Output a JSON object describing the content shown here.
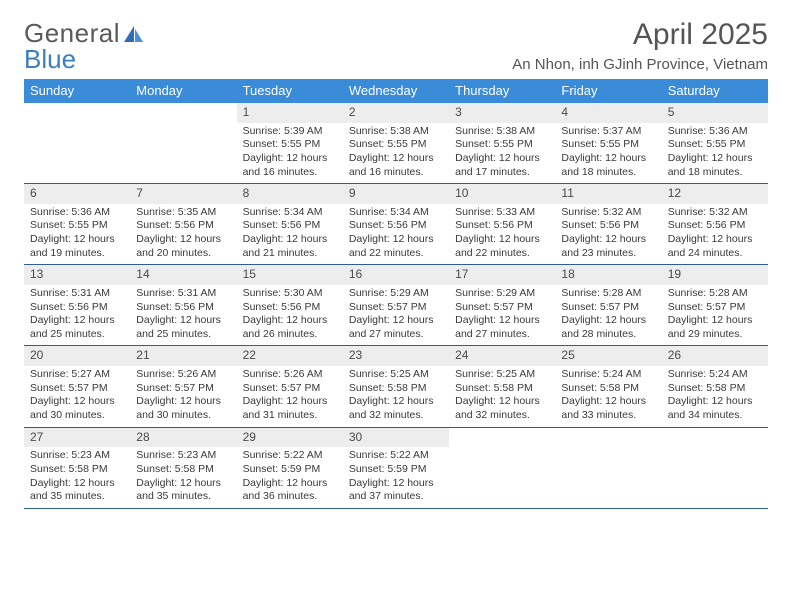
{
  "logo": {
    "general": "General",
    "blue": "Blue"
  },
  "header": {
    "title": "April 2025",
    "subtitle": "An Nhon, inh GJinh Province, Vietnam"
  },
  "dayNames": [
    "Sunday",
    "Monday",
    "Tuesday",
    "Wednesday",
    "Thursday",
    "Friday",
    "Saturday"
  ],
  "colors": {
    "headerBar": "#3a8bd8",
    "weekDivider": "#2f5f91",
    "dayNumBg": "#ededed",
    "text": "#3a3a3a"
  },
  "weeks": [
    [
      {
        "day": "",
        "sunrise": "",
        "sunset": "",
        "daylight1": "",
        "daylight2": ""
      },
      {
        "day": "",
        "sunrise": "",
        "sunset": "",
        "daylight1": "",
        "daylight2": ""
      },
      {
        "day": "1",
        "sunrise": "Sunrise: 5:39 AM",
        "sunset": "Sunset: 5:55 PM",
        "daylight1": "Daylight: 12 hours",
        "daylight2": "and 16 minutes."
      },
      {
        "day": "2",
        "sunrise": "Sunrise: 5:38 AM",
        "sunset": "Sunset: 5:55 PM",
        "daylight1": "Daylight: 12 hours",
        "daylight2": "and 16 minutes."
      },
      {
        "day": "3",
        "sunrise": "Sunrise: 5:38 AM",
        "sunset": "Sunset: 5:55 PM",
        "daylight1": "Daylight: 12 hours",
        "daylight2": "and 17 minutes."
      },
      {
        "day": "4",
        "sunrise": "Sunrise: 5:37 AM",
        "sunset": "Sunset: 5:55 PM",
        "daylight1": "Daylight: 12 hours",
        "daylight2": "and 18 minutes."
      },
      {
        "day": "5",
        "sunrise": "Sunrise: 5:36 AM",
        "sunset": "Sunset: 5:55 PM",
        "daylight1": "Daylight: 12 hours",
        "daylight2": "and 18 minutes."
      }
    ],
    [
      {
        "day": "6",
        "sunrise": "Sunrise: 5:36 AM",
        "sunset": "Sunset: 5:55 PM",
        "daylight1": "Daylight: 12 hours",
        "daylight2": "and 19 minutes."
      },
      {
        "day": "7",
        "sunrise": "Sunrise: 5:35 AM",
        "sunset": "Sunset: 5:56 PM",
        "daylight1": "Daylight: 12 hours",
        "daylight2": "and 20 minutes."
      },
      {
        "day": "8",
        "sunrise": "Sunrise: 5:34 AM",
        "sunset": "Sunset: 5:56 PM",
        "daylight1": "Daylight: 12 hours",
        "daylight2": "and 21 minutes."
      },
      {
        "day": "9",
        "sunrise": "Sunrise: 5:34 AM",
        "sunset": "Sunset: 5:56 PM",
        "daylight1": "Daylight: 12 hours",
        "daylight2": "and 22 minutes."
      },
      {
        "day": "10",
        "sunrise": "Sunrise: 5:33 AM",
        "sunset": "Sunset: 5:56 PM",
        "daylight1": "Daylight: 12 hours",
        "daylight2": "and 22 minutes."
      },
      {
        "day": "11",
        "sunrise": "Sunrise: 5:32 AM",
        "sunset": "Sunset: 5:56 PM",
        "daylight1": "Daylight: 12 hours",
        "daylight2": "and 23 minutes."
      },
      {
        "day": "12",
        "sunrise": "Sunrise: 5:32 AM",
        "sunset": "Sunset: 5:56 PM",
        "daylight1": "Daylight: 12 hours",
        "daylight2": "and 24 minutes."
      }
    ],
    [
      {
        "day": "13",
        "sunrise": "Sunrise: 5:31 AM",
        "sunset": "Sunset: 5:56 PM",
        "daylight1": "Daylight: 12 hours",
        "daylight2": "and 25 minutes."
      },
      {
        "day": "14",
        "sunrise": "Sunrise: 5:31 AM",
        "sunset": "Sunset: 5:56 PM",
        "daylight1": "Daylight: 12 hours",
        "daylight2": "and 25 minutes."
      },
      {
        "day": "15",
        "sunrise": "Sunrise: 5:30 AM",
        "sunset": "Sunset: 5:56 PM",
        "daylight1": "Daylight: 12 hours",
        "daylight2": "and 26 minutes."
      },
      {
        "day": "16",
        "sunrise": "Sunrise: 5:29 AM",
        "sunset": "Sunset: 5:57 PM",
        "daylight1": "Daylight: 12 hours",
        "daylight2": "and 27 minutes."
      },
      {
        "day": "17",
        "sunrise": "Sunrise: 5:29 AM",
        "sunset": "Sunset: 5:57 PM",
        "daylight1": "Daylight: 12 hours",
        "daylight2": "and 27 minutes."
      },
      {
        "day": "18",
        "sunrise": "Sunrise: 5:28 AM",
        "sunset": "Sunset: 5:57 PM",
        "daylight1": "Daylight: 12 hours",
        "daylight2": "and 28 minutes."
      },
      {
        "day": "19",
        "sunrise": "Sunrise: 5:28 AM",
        "sunset": "Sunset: 5:57 PM",
        "daylight1": "Daylight: 12 hours",
        "daylight2": "and 29 minutes."
      }
    ],
    [
      {
        "day": "20",
        "sunrise": "Sunrise: 5:27 AM",
        "sunset": "Sunset: 5:57 PM",
        "daylight1": "Daylight: 12 hours",
        "daylight2": "and 30 minutes."
      },
      {
        "day": "21",
        "sunrise": "Sunrise: 5:26 AM",
        "sunset": "Sunset: 5:57 PM",
        "daylight1": "Daylight: 12 hours",
        "daylight2": "and 30 minutes."
      },
      {
        "day": "22",
        "sunrise": "Sunrise: 5:26 AM",
        "sunset": "Sunset: 5:57 PM",
        "daylight1": "Daylight: 12 hours",
        "daylight2": "and 31 minutes."
      },
      {
        "day": "23",
        "sunrise": "Sunrise: 5:25 AM",
        "sunset": "Sunset: 5:58 PM",
        "daylight1": "Daylight: 12 hours",
        "daylight2": "and 32 minutes."
      },
      {
        "day": "24",
        "sunrise": "Sunrise: 5:25 AM",
        "sunset": "Sunset: 5:58 PM",
        "daylight1": "Daylight: 12 hours",
        "daylight2": "and 32 minutes."
      },
      {
        "day": "25",
        "sunrise": "Sunrise: 5:24 AM",
        "sunset": "Sunset: 5:58 PM",
        "daylight1": "Daylight: 12 hours",
        "daylight2": "and 33 minutes."
      },
      {
        "day": "26",
        "sunrise": "Sunrise: 5:24 AM",
        "sunset": "Sunset: 5:58 PM",
        "daylight1": "Daylight: 12 hours",
        "daylight2": "and 34 minutes."
      }
    ],
    [
      {
        "day": "27",
        "sunrise": "Sunrise: 5:23 AM",
        "sunset": "Sunset: 5:58 PM",
        "daylight1": "Daylight: 12 hours",
        "daylight2": "and 35 minutes."
      },
      {
        "day": "28",
        "sunrise": "Sunrise: 5:23 AM",
        "sunset": "Sunset: 5:58 PM",
        "daylight1": "Daylight: 12 hours",
        "daylight2": "and 35 minutes."
      },
      {
        "day": "29",
        "sunrise": "Sunrise: 5:22 AM",
        "sunset": "Sunset: 5:59 PM",
        "daylight1": "Daylight: 12 hours",
        "daylight2": "and 36 minutes."
      },
      {
        "day": "30",
        "sunrise": "Sunrise: 5:22 AM",
        "sunset": "Sunset: 5:59 PM",
        "daylight1": "Daylight: 12 hours",
        "daylight2": "and 37 minutes."
      },
      {
        "day": "",
        "sunrise": "",
        "sunset": "",
        "daylight1": "",
        "daylight2": ""
      },
      {
        "day": "",
        "sunrise": "",
        "sunset": "",
        "daylight1": "",
        "daylight2": ""
      },
      {
        "day": "",
        "sunrise": "",
        "sunset": "",
        "daylight1": "",
        "daylight2": ""
      }
    ]
  ]
}
